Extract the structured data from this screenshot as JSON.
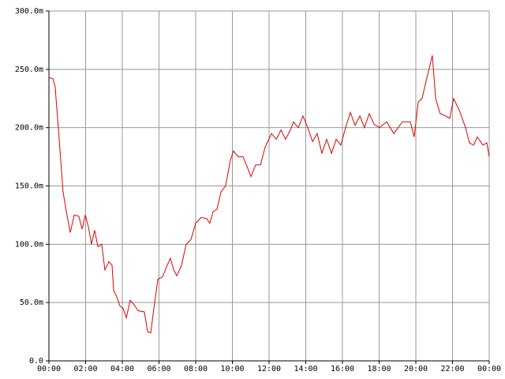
{
  "chart_data": {
    "type": "line",
    "color": "#e00000",
    "grid": true,
    "xlim": [
      0,
      24
    ],
    "xticks": [
      {
        "value": 0,
        "label": "00:00"
      },
      {
        "value": 2,
        "label": "02:00"
      },
      {
        "value": 4,
        "label": "04:00"
      },
      {
        "value": 6,
        "label": "06:00"
      },
      {
        "value": 8,
        "label": "08:00"
      },
      {
        "value": 10,
        "label": "10:00"
      },
      {
        "value": 12,
        "label": "12:00"
      },
      {
        "value": 14,
        "label": "14:00"
      },
      {
        "value": 16,
        "label": "16:00"
      },
      {
        "value": 18,
        "label": "18:00"
      },
      {
        "value": 20,
        "label": "20:00"
      },
      {
        "value": 22,
        "label": "22:00"
      },
      {
        "value": 24,
        "label": "00:00"
      }
    ],
    "ylim": [
      0,
      0.3
    ],
    "yticks": [
      {
        "value": 0,
        "label": "0.0"
      },
      {
        "value": 0.05,
        "label": "50.0m"
      },
      {
        "value": 0.1,
        "label": "100.0m"
      },
      {
        "value": 0.15,
        "label": "150.0m"
      },
      {
        "value": 0.2,
        "label": "200.0m"
      },
      {
        "value": 0.25,
        "label": "250.0m"
      },
      {
        "value": 0.3,
        "label": "300.0m"
      }
    ],
    "x": [
      0,
      0.22,
      0.34,
      0.56,
      0.77,
      0.95,
      1.16,
      1.38,
      1.63,
      1.81,
      1.98,
      2.15,
      2.32,
      2.49,
      2.67,
      2.88,
      3.05,
      3.27,
      3.44,
      3.53,
      3.7,
      3.87,
      4.04,
      4.22,
      4.43,
      4.65,
      4.86,
      5.2,
      5.38,
      5.55,
      5.72,
      5.94,
      6.19,
      6.45,
      6.62,
      6.8,
      6.97,
      7.23,
      7.48,
      7.74,
      8.0,
      8.3,
      8.6,
      8.77,
      8.95,
      9.16,
      9.38,
      9.63,
      9.89,
      10.06,
      10.32,
      10.58,
      10.84,
      11.01,
      11.27,
      11.53,
      11.78,
      12.13,
      12.39,
      12.65,
      12.9,
      13.16,
      13.33,
      13.59,
      13.85,
      14.11,
      14.37,
      14.62,
      14.88,
      15.14,
      15.4,
      15.66,
      15.91,
      16.17,
      16.43,
      16.69,
      16.95,
      17.2,
      17.46,
      17.72,
      18.02,
      18.41,
      18.8,
      19.27,
      19.7,
      19.91,
      20.13,
      20.34,
      20.56,
      20.9,
      21.08,
      21.33,
      21.63,
      21.85,
      22.06,
      22.37,
      22.71,
      22.92,
      23.14,
      23.35,
      23.66,
      23.87,
      24
    ],
    "values": [
      0.243,
      0.242,
      0.235,
      0.19,
      0.145,
      0.128,
      0.11,
      0.125,
      0.124,
      0.113,
      0.125,
      0.115,
      0.1,
      0.112,
      0.098,
      0.1,
      0.078,
      0.085,
      0.082,
      0.06,
      0.055,
      0.047,
      0.045,
      0.037,
      0.052,
      0.048,
      0.043,
      0.042,
      0.025,
      0.024,
      0.045,
      0.07,
      0.072,
      0.082,
      0.088,
      0.078,
      0.073,
      0.082,
      0.1,
      0.104,
      0.118,
      0.123,
      0.122,
      0.118,
      0.128,
      0.13,
      0.145,
      0.15,
      0.172,
      0.18,
      0.175,
      0.175,
      0.165,
      0.158,
      0.168,
      0.168,
      0.183,
      0.195,
      0.19,
      0.198,
      0.19,
      0.198,
      0.205,
      0.2,
      0.21,
      0.2,
      0.188,
      0.195,
      0.178,
      0.19,
      0.178,
      0.19,
      0.185,
      0.2,
      0.213,
      0.202,
      0.21,
      0.2,
      0.212,
      0.203,
      0.2,
      0.205,
      0.195,
      0.205,
      0.205,
      0.192,
      0.222,
      0.225,
      0.24,
      0.262,
      0.225,
      0.212,
      0.21,
      0.208,
      0.225,
      0.215,
      0.2,
      0.187,
      0.185,
      0.192,
      0.185,
      0.187,
      0.175
    ]
  }
}
